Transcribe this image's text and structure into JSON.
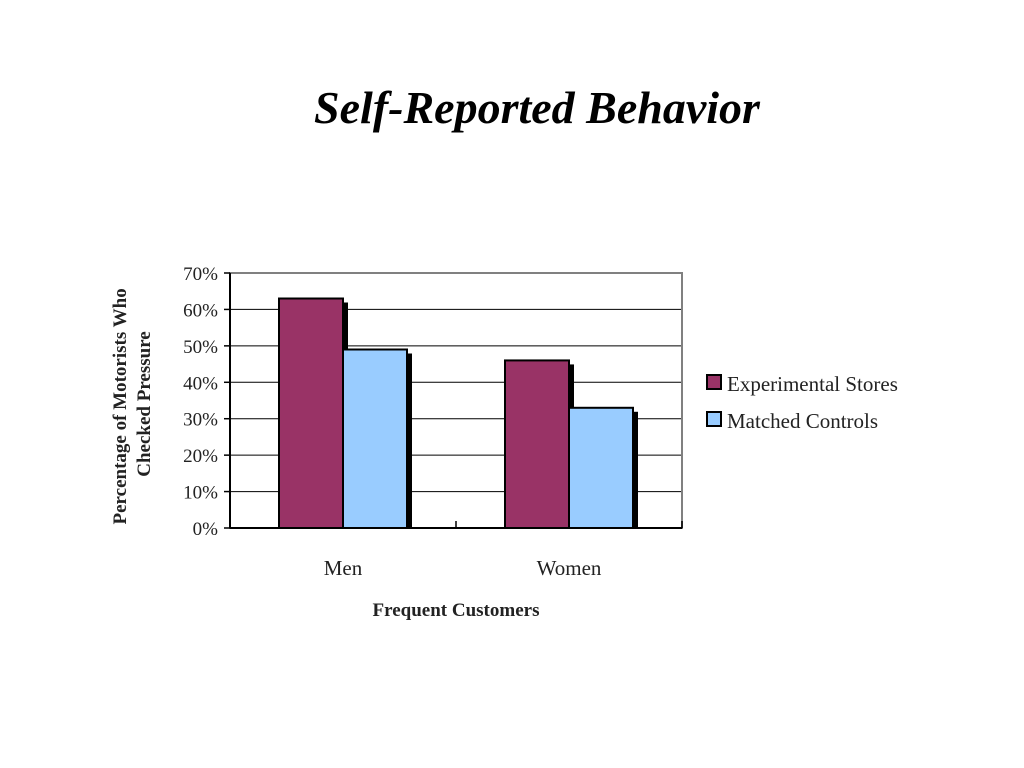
{
  "slide": {
    "title": "Self-Reported Behavior"
  },
  "colors": {
    "experimental": "#993366",
    "controls": "#99ccff",
    "shadow": "#000000",
    "gridline": "#000000",
    "plot_border": "#808080"
  },
  "chart_data": {
    "type": "bar",
    "categories": [
      "Men",
      "Women"
    ],
    "series": [
      {
        "name": "Experimental Stores",
        "values": [
          63,
          46
        ]
      },
      {
        "name": "Matched Controls",
        "values": [
          49,
          33
        ]
      }
    ],
    "xlabel": "Frequent Customers",
    "ylabel_lines": [
      "Percentage of Motorists Who",
      "Checked Pressure"
    ],
    "ylim": [
      0,
      70
    ],
    "yticks": [
      0,
      10,
      20,
      30,
      40,
      50,
      60,
      70
    ],
    "ytick_labels": [
      "0%",
      "10%",
      "20%",
      "30%",
      "40%",
      "50%",
      "60%",
      "70%"
    ],
    "grid": true,
    "legend": "right"
  }
}
